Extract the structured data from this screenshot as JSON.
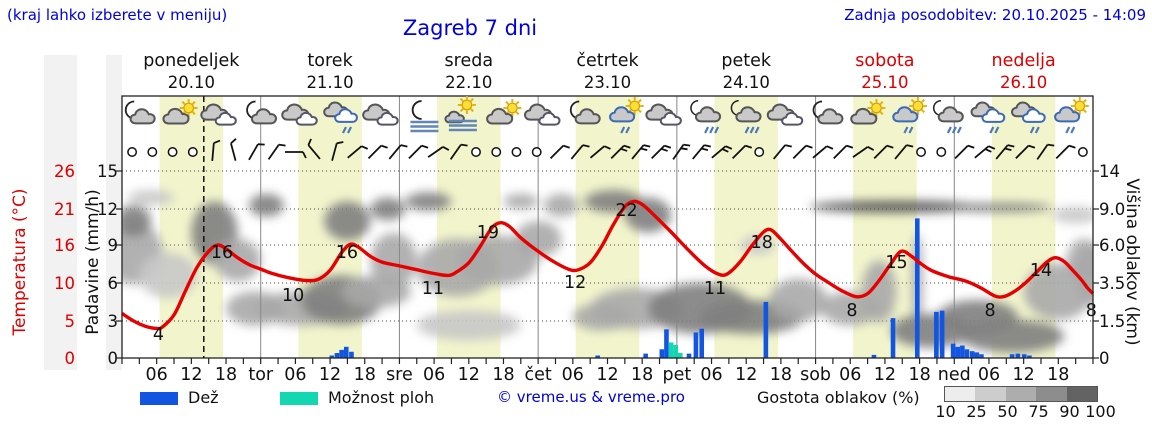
{
  "header": {
    "hint": "(kraj lahko izberete v meniju)",
    "title": "Zagreb 7 dni",
    "updated": "Zadnja posodobitev: 20.10.2025 - 14:09"
  },
  "colors": {
    "accent_blue": "#0000dd",
    "weekend_red": "#dd0000",
    "curve": "#e60000",
    "rain": "#1155e0",
    "shower": "#13d7b0",
    "day_band": "#f2f5cc",
    "grid": "#444444",
    "cloud_levels": [
      "#e4e4e4",
      "#c8c8c8",
      "#a8a8a8",
      "#808080",
      "#555555"
    ],
    "cover_scale": [
      "#ededed",
      "#cdcdcd",
      "#adadad",
      "#8d8d8d",
      "#636363"
    ]
  },
  "days": [
    {
      "name": "ponedeljek",
      "date": "20.10",
      "abbr": null,
      "weekend": false
    },
    {
      "name": "torek",
      "date": "21.10",
      "abbr": "tor",
      "weekend": false
    },
    {
      "name": "sreda",
      "date": "22.10",
      "abbr": "sre",
      "weekend": false
    },
    {
      "name": "četrtek",
      "date": "23.10",
      "abbr": "čet",
      "weekend": false
    },
    {
      "name": "petek",
      "date": "24.10",
      "abbr": "pet",
      "weekend": false
    },
    {
      "name": "sobota",
      "date": "25.10",
      "abbr": "sob",
      "weekend": true
    },
    {
      "name": "nedelja",
      "date": "26.10",
      "abbr": "ned",
      "weekend": true
    }
  ],
  "axes": {
    "temperature": {
      "label": "Temperatura (°C)",
      "ticks": [
        "26",
        "21",
        "16",
        "10",
        "5",
        "0"
      ],
      "tick_values": [
        26,
        21,
        16,
        10,
        5,
        0
      ]
    },
    "precip": {
      "label": "Padavine (mm/h)",
      "ticks": [
        "15",
        "12",
        "9",
        "6",
        "3",
        "0"
      ],
      "tick_values": [
        15,
        12,
        9,
        6,
        3,
        0
      ]
    },
    "cloudHeight": {
      "label": "Višina oblakov (km)",
      "ticks": [
        "14",
        "9.0",
        "6.0",
        "3.5",
        "1.5",
        "0"
      ],
      "tick_values": [
        14,
        9,
        6,
        3.5,
        1.5,
        0
      ]
    },
    "hour_labels": [
      "06",
      "12",
      "18"
    ]
  },
  "legend": {
    "rain_label": "Dež",
    "shower_label": "Možnost ploh",
    "credit": "© vreme.us & vreme.pro",
    "cover_label": "Gostota oblakov (%)",
    "cover_ticks": [
      "10",
      "25",
      "50",
      "75",
      "90",
      "100"
    ]
  },
  "icons_row": [
    "moon-cloud",
    "sun-cloud",
    "cloud",
    "moon-cloud",
    "cloud",
    "cloud-rain",
    "cloud",
    "moon-fog",
    "sun-fog",
    "sun-cloud",
    "cloud",
    "moon-cloud",
    "sun-cloud-rain",
    "cloud",
    "moon-cloud-rain",
    "moon-cloud-rain",
    "cloud",
    "moon-cloud",
    "sun-cloud",
    "sun-cloud-rain",
    "moon-cloud-rain",
    "cloud-rain",
    "cloud-rain",
    "sun-cloud-rain"
  ],
  "wind_row": [
    {
      "t": "calm"
    },
    {
      "t": "calm"
    },
    {
      "t": "calm"
    },
    {
      "t": "calm"
    },
    {
      "t": "barb",
      "r": 5,
      "f": 1
    },
    {
      "t": "barb",
      "r": -15,
      "f": 1
    },
    {
      "t": "barb",
      "r": 30,
      "f": 1
    },
    {
      "t": "barb",
      "r": 35,
      "f": 1
    },
    {
      "t": "barb",
      "r": 90,
      "f": 1
    },
    {
      "t": "barb",
      "r": -40,
      "f": 1
    },
    {
      "t": "barb",
      "r": 15,
      "f": 1
    },
    {
      "t": "barb",
      "r": 50,
      "f": 1
    },
    {
      "t": "barb",
      "r": 45,
      "f": 1
    },
    {
      "t": "barb",
      "r": 40,
      "f": 1
    },
    {
      "t": "barb",
      "r": 45,
      "f": 1
    },
    {
      "t": "barb",
      "r": 55,
      "f": 1
    },
    {
      "t": "barb",
      "r": 35,
      "f": 1
    },
    {
      "t": "calm"
    },
    {
      "t": "calm"
    },
    {
      "t": "calm"
    },
    {
      "t": "calm"
    },
    {
      "t": "barb",
      "r": 45,
      "f": 1
    },
    {
      "t": "barb",
      "r": 40,
      "f": 1
    },
    {
      "t": "barb",
      "r": 50,
      "f": 1
    },
    {
      "t": "barb",
      "r": 45,
      "f": 2
    },
    {
      "t": "barb",
      "r": 40,
      "f": 2
    },
    {
      "t": "barb",
      "r": 45,
      "f": 2
    },
    {
      "t": "barb",
      "r": 35,
      "f": 2
    },
    {
      "t": "barb",
      "r": 40,
      "f": 2
    },
    {
      "t": "barb",
      "r": 50,
      "f": 2
    },
    {
      "t": "barb",
      "r": 45,
      "f": 1
    },
    {
      "t": "calm"
    },
    {
      "t": "barb",
      "r": 40,
      "f": 1
    },
    {
      "t": "barb",
      "r": 45,
      "f": 1
    },
    {
      "t": "barb",
      "r": 50,
      "f": 1
    },
    {
      "t": "barb",
      "r": 45,
      "f": 1
    },
    {
      "t": "barb",
      "r": 55,
      "f": 1
    },
    {
      "t": "barb",
      "r": 45,
      "f": 1
    },
    {
      "t": "barb",
      "r": 40,
      "f": 1
    },
    {
      "t": "calm"
    },
    {
      "t": "calm"
    },
    {
      "t": "barb",
      "r": 45,
      "f": 1
    },
    {
      "t": "barb",
      "r": 50,
      "f": 2
    },
    {
      "t": "barb",
      "r": 40,
      "f": 2
    },
    {
      "t": "barb",
      "r": 45,
      "f": 1
    },
    {
      "t": "barb",
      "r": 35,
      "f": 1
    },
    {
      "t": "barb",
      "r": 45,
      "f": 1
    },
    {
      "t": "calm"
    }
  ],
  "chart_data": {
    "type": "line",
    "title": "Zagreb 7 dni",
    "x_axis": {
      "unit": "hours from Mon 20.10 00:00",
      "span_hours": 168,
      "hour_ticks_per_day": [
        6,
        12,
        18
      ]
    },
    "current_time_hour": 14.15,
    "temperature": {
      "name": "Temperatura (°C)",
      "ylim": [
        0,
        26
      ],
      "points": [
        [
          0,
          6
        ],
        [
          2,
          5
        ],
        [
          4,
          4.3
        ],
        [
          6,
          4
        ],
        [
          7,
          4.2
        ],
        [
          9,
          5.8
        ],
        [
          11,
          9
        ],
        [
          13,
          12.5
        ],
        [
          15,
          15
        ],
        [
          16.5,
          16
        ],
        [
          18,
          15.4
        ],
        [
          20,
          14
        ],
        [
          22,
          12.9
        ],
        [
          24,
          12.2
        ],
        [
          26,
          11.5
        ],
        [
          29,
          10.8
        ],
        [
          32,
          10.4
        ],
        [
          34,
          10.6
        ],
        [
          36,
          12
        ],
        [
          38,
          14.8
        ],
        [
          39.5,
          16.1
        ],
        [
          41,
          15.6
        ],
        [
          43,
          14.2
        ],
        [
          45,
          13.3
        ],
        [
          48,
          12.7
        ],
        [
          51,
          12.1
        ],
        [
          54,
          11.5
        ],
        [
          56.5,
          11.2
        ],
        [
          58,
          11.8
        ],
        [
          60,
          13.2
        ],
        [
          62,
          15.8
        ],
        [
          64,
          18.4
        ],
        [
          65.5,
          19.1
        ],
        [
          67,
          18.6
        ],
        [
          69,
          17
        ],
        [
          72,
          15
        ],
        [
          75,
          13.2
        ],
        [
          77.5,
          12.1
        ],
        [
          79,
          12.1
        ],
        [
          81,
          13.2
        ],
        [
          83,
          15.8
        ],
        [
          85,
          18.8
        ],
        [
          87,
          21.3
        ],
        [
          88.5,
          22
        ],
        [
          90,
          21.6
        ],
        [
          92,
          20.2
        ],
        [
          95,
          17.8
        ],
        [
          98,
          15.2
        ],
        [
          101,
          12.6
        ],
        [
          103.5,
          11.3
        ],
        [
          105,
          11.6
        ],
        [
          107,
          13.4
        ],
        [
          109,
          15.9
        ],
        [
          111,
          17.8
        ],
        [
          112.3,
          18.1
        ],
        [
          114,
          16.8
        ],
        [
          116,
          14.9
        ],
        [
          118,
          13
        ],
        [
          120,
          11.4
        ],
        [
          122,
          10.2
        ],
        [
          124.5,
          9
        ],
        [
          127,
          8.2
        ],
        [
          129,
          8.6
        ],
        [
          131,
          10.4
        ],
        [
          133,
          13
        ],
        [
          134.8,
          15
        ],
        [
          136.5,
          14.3
        ],
        [
          138,
          13.2
        ],
        [
          140,
          12
        ],
        [
          143,
          11
        ],
        [
          146,
          10.3
        ],
        [
          148.5,
          9.4
        ],
        [
          151,
          8.3
        ],
        [
          152.5,
          8.2
        ],
        [
          154,
          8.7
        ],
        [
          156,
          9.8
        ],
        [
          158,
          11.5
        ],
        [
          160,
          13.3
        ],
        [
          161.5,
          14
        ],
        [
          163,
          13.4
        ],
        [
          164.5,
          12
        ],
        [
          166,
          10.5
        ],
        [
          167,
          9.4
        ],
        [
          168,
          8.6
        ]
      ],
      "point_labels": [
        {
          "h": 6.3,
          "text": "4",
          "y": 340
        },
        {
          "h": 17.3,
          "text": "16",
          "y": 258
        },
        {
          "h": 29.6,
          "text": "10",
          "y": 301
        },
        {
          "h": 38.9,
          "text": "16",
          "y": 258
        },
        {
          "h": 53.8,
          "text": "11",
          "y": 294
        },
        {
          "h": 63.3,
          "text": "19",
          "y": 238
        },
        {
          "h": 78.4,
          "text": "12",
          "y": 288
        },
        {
          "h": 87.3,
          "text": "22",
          "y": 216
        },
        {
          "h": 102.6,
          "text": "11",
          "y": 294
        },
        {
          "h": 110.7,
          "text": "18",
          "y": 248
        },
        {
          "h": 126.3,
          "text": "8",
          "y": 316
        },
        {
          "h": 134,
          "text": "15",
          "y": 268
        },
        {
          "h": 150.2,
          "text": "8",
          "y": 316
        },
        {
          "h": 159,
          "text": "14",
          "y": 276
        },
        {
          "h": 167.7,
          "text": "8",
          "y": 316
        }
      ]
    },
    "precipitation": {
      "name": "Padavine (mm/h)",
      "ylim": [
        0,
        15
      ],
      "bars": [
        {
          "h": 36.3,
          "v": 0.2,
          "kind": "rain"
        },
        {
          "h": 37.2,
          "v": 0.4,
          "kind": "rain"
        },
        {
          "h": 38,
          "v": 0.65,
          "kind": "rain"
        },
        {
          "h": 38.8,
          "v": 0.9,
          "kind": "rain"
        },
        {
          "h": 39.7,
          "v": 0.5,
          "kind": "rain"
        },
        {
          "h": 82.3,
          "v": 0.2,
          "kind": "rain"
        },
        {
          "h": 90.6,
          "v": 0.35,
          "kind": "rain"
        },
        {
          "h": 93.4,
          "v": 0.7,
          "kind": "rain"
        },
        {
          "h": 94.2,
          "v": 2.3,
          "kind": "rain"
        },
        {
          "h": 95,
          "v": 1.25,
          "kind": "shower"
        },
        {
          "h": 95.8,
          "v": 1.05,
          "kind": "shower"
        },
        {
          "h": 96.6,
          "v": 0.4,
          "kind": "shower"
        },
        {
          "h": 98.1,
          "v": 0.35,
          "kind": "rain"
        },
        {
          "h": 99.3,
          "v": 2.05,
          "kind": "rain"
        },
        {
          "h": 100.3,
          "v": 2.35,
          "kind": "rain"
        },
        {
          "h": 111.4,
          "v": 4.5,
          "kind": "rain"
        },
        {
          "h": 130.1,
          "v": 0.25,
          "kind": "rain"
        },
        {
          "h": 133.4,
          "v": 3.2,
          "kind": "rain"
        },
        {
          "h": 137.6,
          "v": 11.2,
          "kind": "rain"
        },
        {
          "h": 140.9,
          "v": 3.7,
          "kind": "rain"
        },
        {
          "h": 141.9,
          "v": 3.8,
          "kind": "rain"
        },
        {
          "h": 143.8,
          "v": 1.15,
          "kind": "rain"
        },
        {
          "h": 144.6,
          "v": 0.9,
          "kind": "rain"
        },
        {
          "h": 145.4,
          "v": 1.0,
          "kind": "rain"
        },
        {
          "h": 146.2,
          "v": 0.7,
          "kind": "rain"
        },
        {
          "h": 147.1,
          "v": 0.55,
          "kind": "rain"
        },
        {
          "h": 147.9,
          "v": 0.45,
          "kind": "rain"
        },
        {
          "h": 148.7,
          "v": 0.3,
          "kind": "rain"
        },
        {
          "h": 154,
          "v": 0.3,
          "kind": "rain"
        },
        {
          "h": 155,
          "v": 0.35,
          "kind": "rain"
        },
        {
          "h": 156.1,
          "v": 0.3,
          "kind": "rain"
        },
        {
          "h": 157,
          "v": 0.2,
          "kind": "rain"
        }
      ]
    },
    "cloud_blobs": [
      {
        "h": 2,
        "km": 5.5,
        "rh": 5,
        "rkm": 2.5,
        "d": 3
      },
      {
        "h": 2,
        "km": 8,
        "rh": 3,
        "rkm": 1.5,
        "d": 4
      },
      {
        "h": 5,
        "km": 10.5,
        "rh": 4,
        "rkm": 1,
        "d": 2
      },
      {
        "h": 8,
        "km": 4,
        "rh": 5,
        "rkm": 1.5,
        "d": 2
      },
      {
        "h": 16,
        "km": 7,
        "rh": 4,
        "rkm": 3,
        "d": 4
      },
      {
        "h": 20,
        "km": 5,
        "rh": 4,
        "rkm": 1.5,
        "d": 3
      },
      {
        "h": 23,
        "km": 2,
        "rh": 5,
        "rkm": 1,
        "d": 3
      },
      {
        "h": 25,
        "km": 9.5,
        "rh": 3,
        "rkm": 1.5,
        "d": 4
      },
      {
        "h": 31,
        "km": 2,
        "rh": 8,
        "rkm": 1,
        "d": 3
      },
      {
        "h": 38,
        "km": 2.5,
        "rh": 7,
        "rkm": 1.5,
        "d": 4
      },
      {
        "h": 39,
        "km": 8,
        "rh": 4,
        "rkm": 2,
        "d": 4
      },
      {
        "h": 46,
        "km": 9,
        "rh": 3,
        "rkm": 1.5,
        "d": 4
      },
      {
        "h": 47,
        "km": 5,
        "rh": 4,
        "rkm": 2,
        "d": 3
      },
      {
        "h": 44,
        "km": 3,
        "rh": 6,
        "rkm": 1,
        "d": 3
      },
      {
        "h": 53,
        "km": 10,
        "rh": 4,
        "rkm": 1.2,
        "d": 4
      },
      {
        "h": 58,
        "km": 4.5,
        "rh": 7,
        "rkm": 2,
        "d": 3
      },
      {
        "h": 65,
        "km": 5,
        "rh": 7,
        "rkm": 1.8,
        "d": 3
      },
      {
        "h": 69,
        "km": 10,
        "rh": 3,
        "rkm": 1,
        "d": 3
      },
      {
        "h": 72,
        "km": 6.5,
        "rh": 4,
        "rkm": 1.5,
        "d": 3
      },
      {
        "h": 60,
        "km": 1.2,
        "rh": 9,
        "rkm": 0.7,
        "d": 2
      },
      {
        "h": 76,
        "km": 9.5,
        "rh": 3,
        "rkm": 1.5,
        "d": 3
      },
      {
        "h": 85,
        "km": 10,
        "rh": 5,
        "rkm": 1.5,
        "d": 4
      },
      {
        "h": 91,
        "km": 8.5,
        "rh": 4,
        "rkm": 2,
        "d": 4
      },
      {
        "h": 89,
        "km": 2,
        "rh": 8,
        "rkm": 1.2,
        "d": 3
      },
      {
        "h": 83,
        "km": 1.5,
        "rh": 5,
        "rkm": 0.8,
        "d": 3
      },
      {
        "h": 100,
        "km": 2,
        "rh": 9,
        "rkm": 1.5,
        "d": 4
      },
      {
        "h": 109,
        "km": 1.5,
        "rh": 9,
        "rkm": 1,
        "d": 4
      },
      {
        "h": 110,
        "km": 6,
        "rh": 3,
        "rkm": 0.8,
        "d": 2
      },
      {
        "h": 117,
        "km": 2.5,
        "rh": 5,
        "rkm": 1.3,
        "d": 3
      },
      {
        "h": 134,
        "km": 9.3,
        "rh": 15,
        "rkm": 0.8,
        "d": 5
      },
      {
        "h": 126,
        "km": 2,
        "rh": 5,
        "rkm": 1,
        "d": 3
      },
      {
        "h": 131,
        "km": 3,
        "rh": 3,
        "rkm": 2,
        "d": 3
      },
      {
        "h": 137.6,
        "km": 3.5,
        "rh": 1,
        "rkm": 3.5,
        "d": 3
      },
      {
        "h": 140,
        "km": 1,
        "rh": 7,
        "rkm": 0.7,
        "d": 4
      },
      {
        "h": 152,
        "km": 9.2,
        "rh": 9,
        "rkm": 0.6,
        "d": 4
      },
      {
        "h": 148,
        "km": 1.5,
        "rh": 7,
        "rkm": 1,
        "d": 4
      },
      {
        "h": 154,
        "km": 0.8,
        "rh": 9,
        "rkm": 0.6,
        "d": 4
      },
      {
        "h": 162,
        "km": 3,
        "rh": 6,
        "rkm": 1.8,
        "d": 3
      },
      {
        "h": 166.5,
        "km": 5,
        "rh": 3,
        "rkm": 1.5,
        "d": 3
      },
      {
        "h": 165,
        "km": 8.5,
        "rh": 4,
        "rkm": 0.8,
        "d": 2
      },
      {
        "h": 168,
        "km": 4,
        "rh": 3,
        "rkm": 2,
        "d": 3
      }
    ]
  }
}
